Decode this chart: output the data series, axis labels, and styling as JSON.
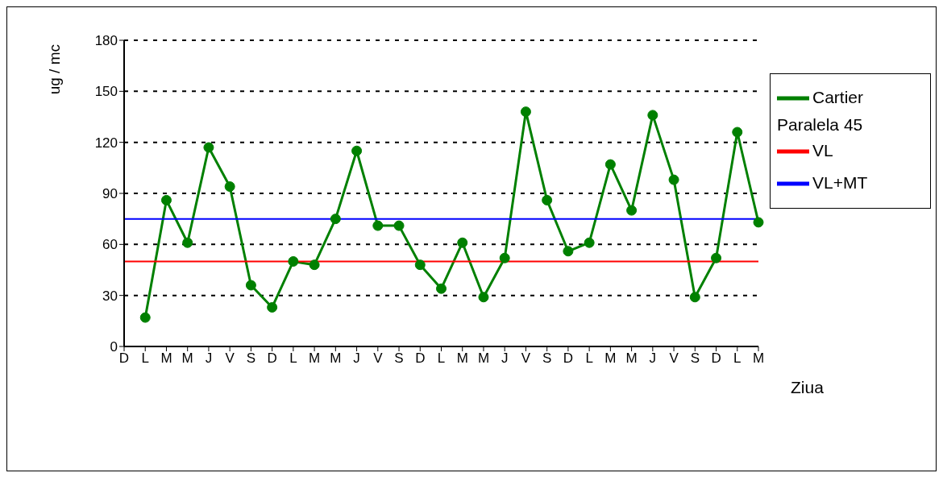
{
  "chart_data": {
    "type": "line",
    "xlabel": "Ziua",
    "ylabel": "ug / mc",
    "categories": [
      "D",
      "L",
      "M",
      "M",
      "J",
      "V",
      "S",
      "D",
      "L",
      "M",
      "M",
      "J",
      "V",
      "S",
      "D",
      "L",
      "M",
      "M",
      "J",
      "V",
      "S",
      "D",
      "L",
      "M",
      "M",
      "J",
      "V",
      "S",
      "D",
      "L",
      "M"
    ],
    "series": [
      {
        "name": "Cartier Paralela 45",
        "color": "#008000",
        "marker": "circle",
        "values": [
          null,
          17,
          86,
          61,
          117,
          94,
          36,
          23,
          50,
          48,
          75,
          115,
          71,
          71,
          48,
          34,
          61,
          29,
          52,
          138,
          86,
          56,
          61,
          107,
          80,
          136,
          98,
          29,
          52,
          126,
          73
        ]
      },
      {
        "name": "VL",
        "color": "#ff0000",
        "marker": "none",
        "values": [
          50,
          50,
          50,
          50,
          50,
          50,
          50,
          50,
          50,
          50,
          50,
          50,
          50,
          50,
          50,
          50,
          50,
          50,
          50,
          50,
          50,
          50,
          50,
          50,
          50,
          50,
          50,
          50,
          50,
          50,
          50
        ]
      },
      {
        "name": "VL+MT",
        "color": "#0000ff",
        "marker": "none",
        "values": [
          75,
          75,
          75,
          75,
          75,
          75,
          75,
          75,
          75,
          75,
          75,
          75,
          75,
          75,
          75,
          75,
          75,
          75,
          75,
          75,
          75,
          75,
          75,
          75,
          75,
          75,
          75,
          75,
          75,
          75,
          75
        ]
      }
    ],
    "ylim": [
      0,
      180
    ],
    "yticks": [
      0,
      30,
      60,
      90,
      120,
      150,
      180
    ],
    "grid": "y",
    "legend": "right"
  }
}
